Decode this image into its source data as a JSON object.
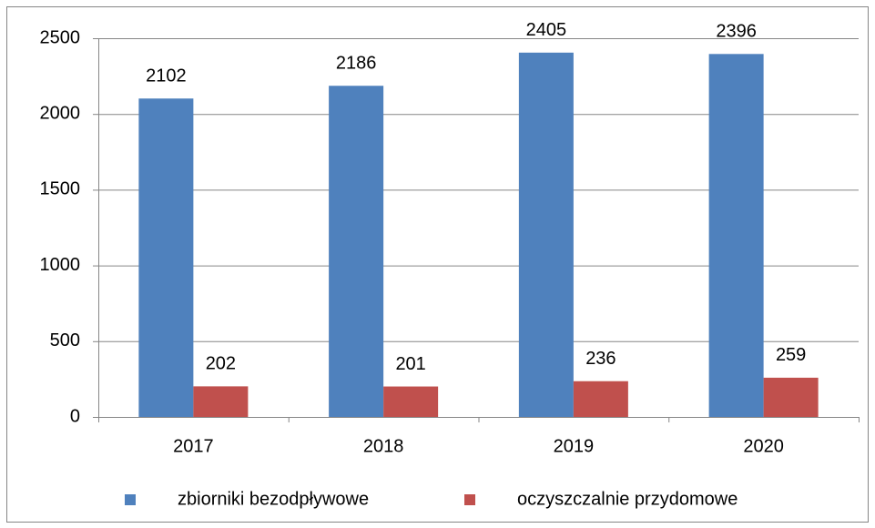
{
  "chart_data": {
    "type": "bar",
    "categories": [
      "2017",
      "2018",
      "2019",
      "2020"
    ],
    "series": [
      {
        "name": "zbiorniki bezodpływowe",
        "color": "#4f81bd",
        "values": [
          2102,
          2186,
          2405,
          2396
        ]
      },
      {
        "name": "oczyszczalnie przydomowe",
        "color": "#c0504d",
        "values": [
          202,
          201,
          236,
          259
        ]
      }
    ],
    "ylim": [
      0,
      2500
    ],
    "yticks": [
      0,
      500,
      1000,
      1500,
      2000,
      2500
    ],
    "grid": true,
    "legend": "bottom"
  }
}
